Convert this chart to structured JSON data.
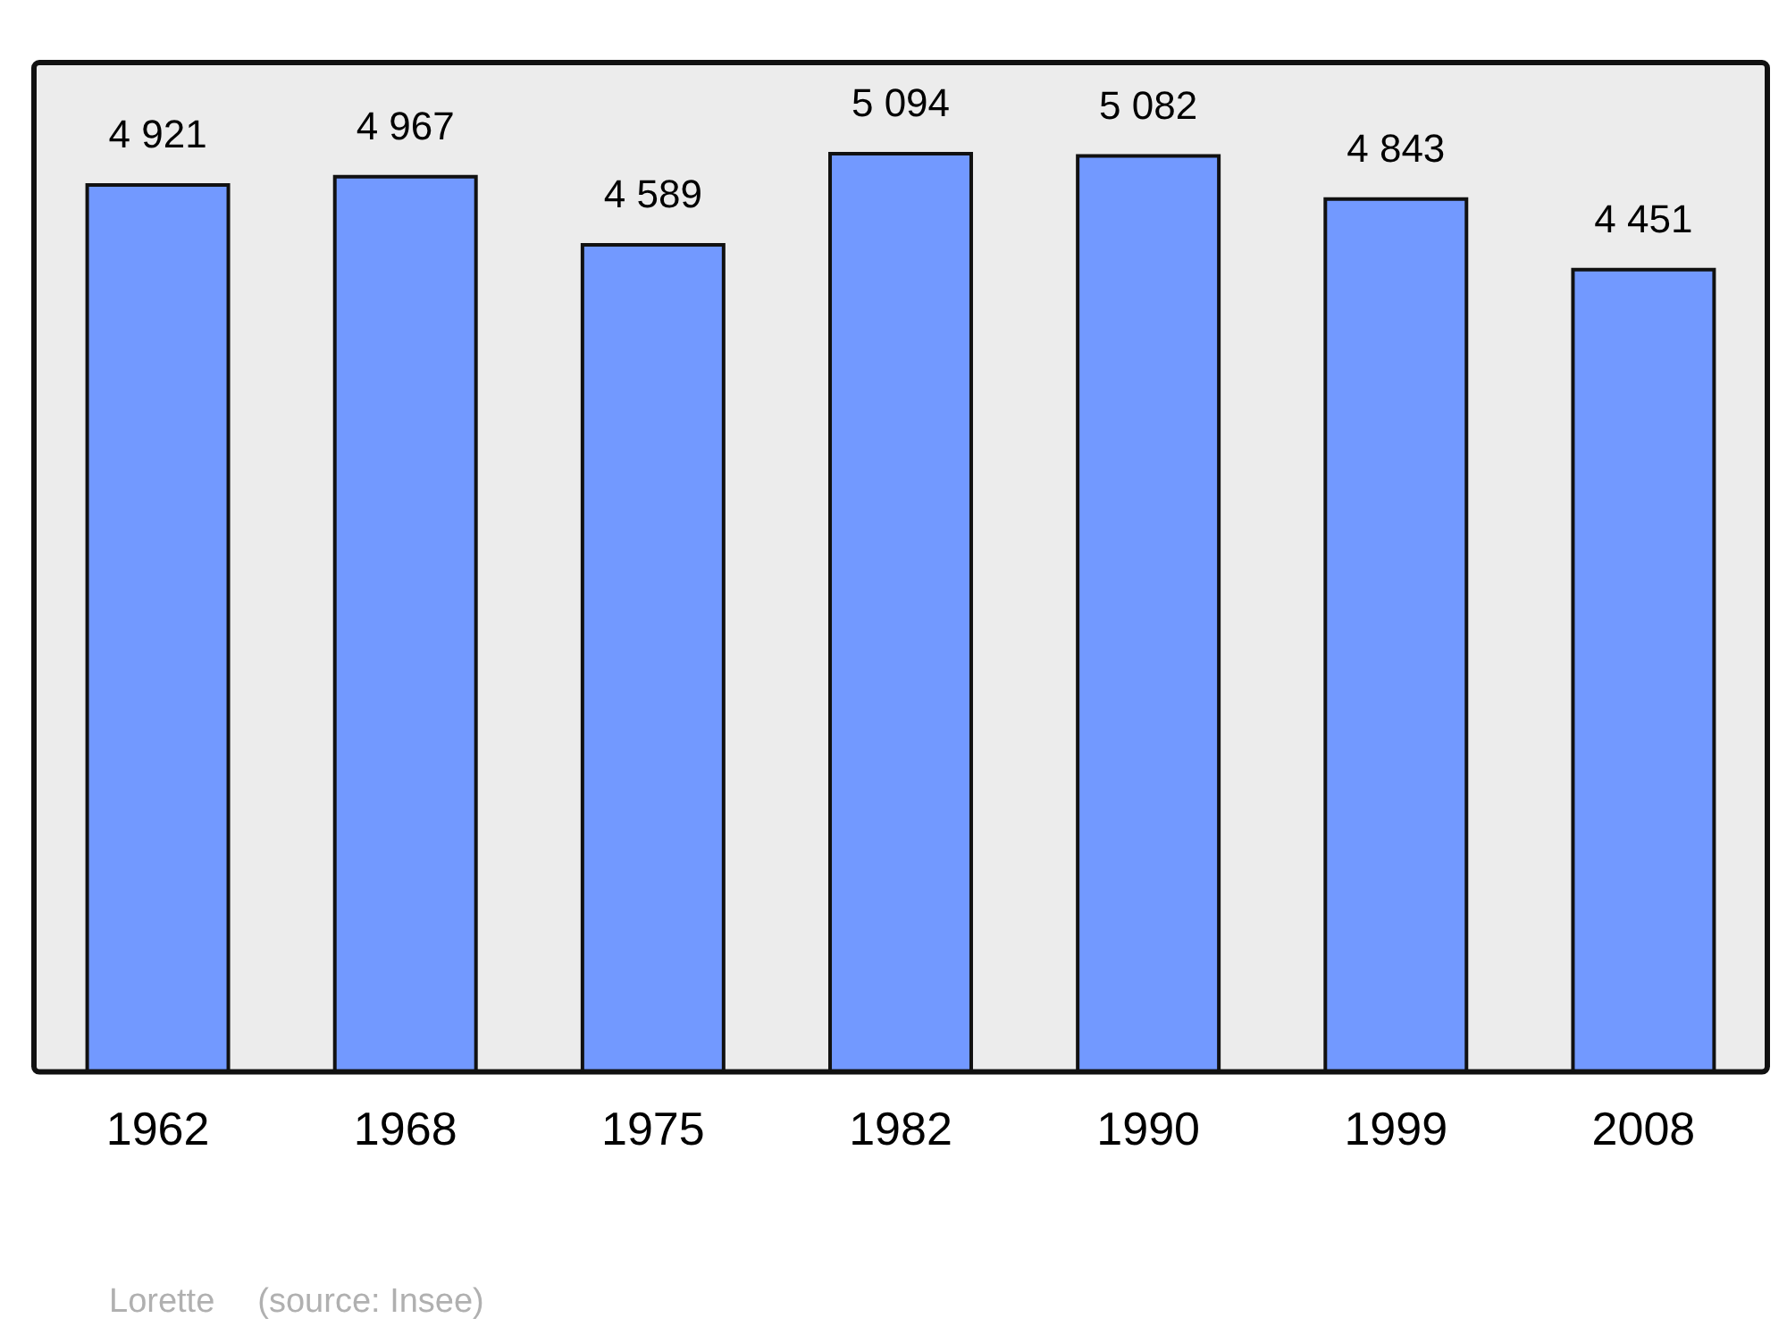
{
  "chart_data": {
    "type": "bar",
    "categories": [
      "1962",
      "1968",
      "1975",
      "1982",
      "1990",
      "1999",
      "2008"
    ],
    "values": [
      4921,
      4967,
      4589,
      5094,
      5082,
      4843,
      4451
    ],
    "value_labels": [
      "4 921",
      "4 967",
      "4 589",
      "5 094",
      "5 082",
      "4 843",
      "4 451"
    ],
    "color": "#7299ff",
    "ylim": [
      0,
      5600
    ],
    "tick_labels": "x",
    "grid": false,
    "legend": false,
    "annotations": [
      "Lorette",
      "(source: Insee)"
    ]
  }
}
